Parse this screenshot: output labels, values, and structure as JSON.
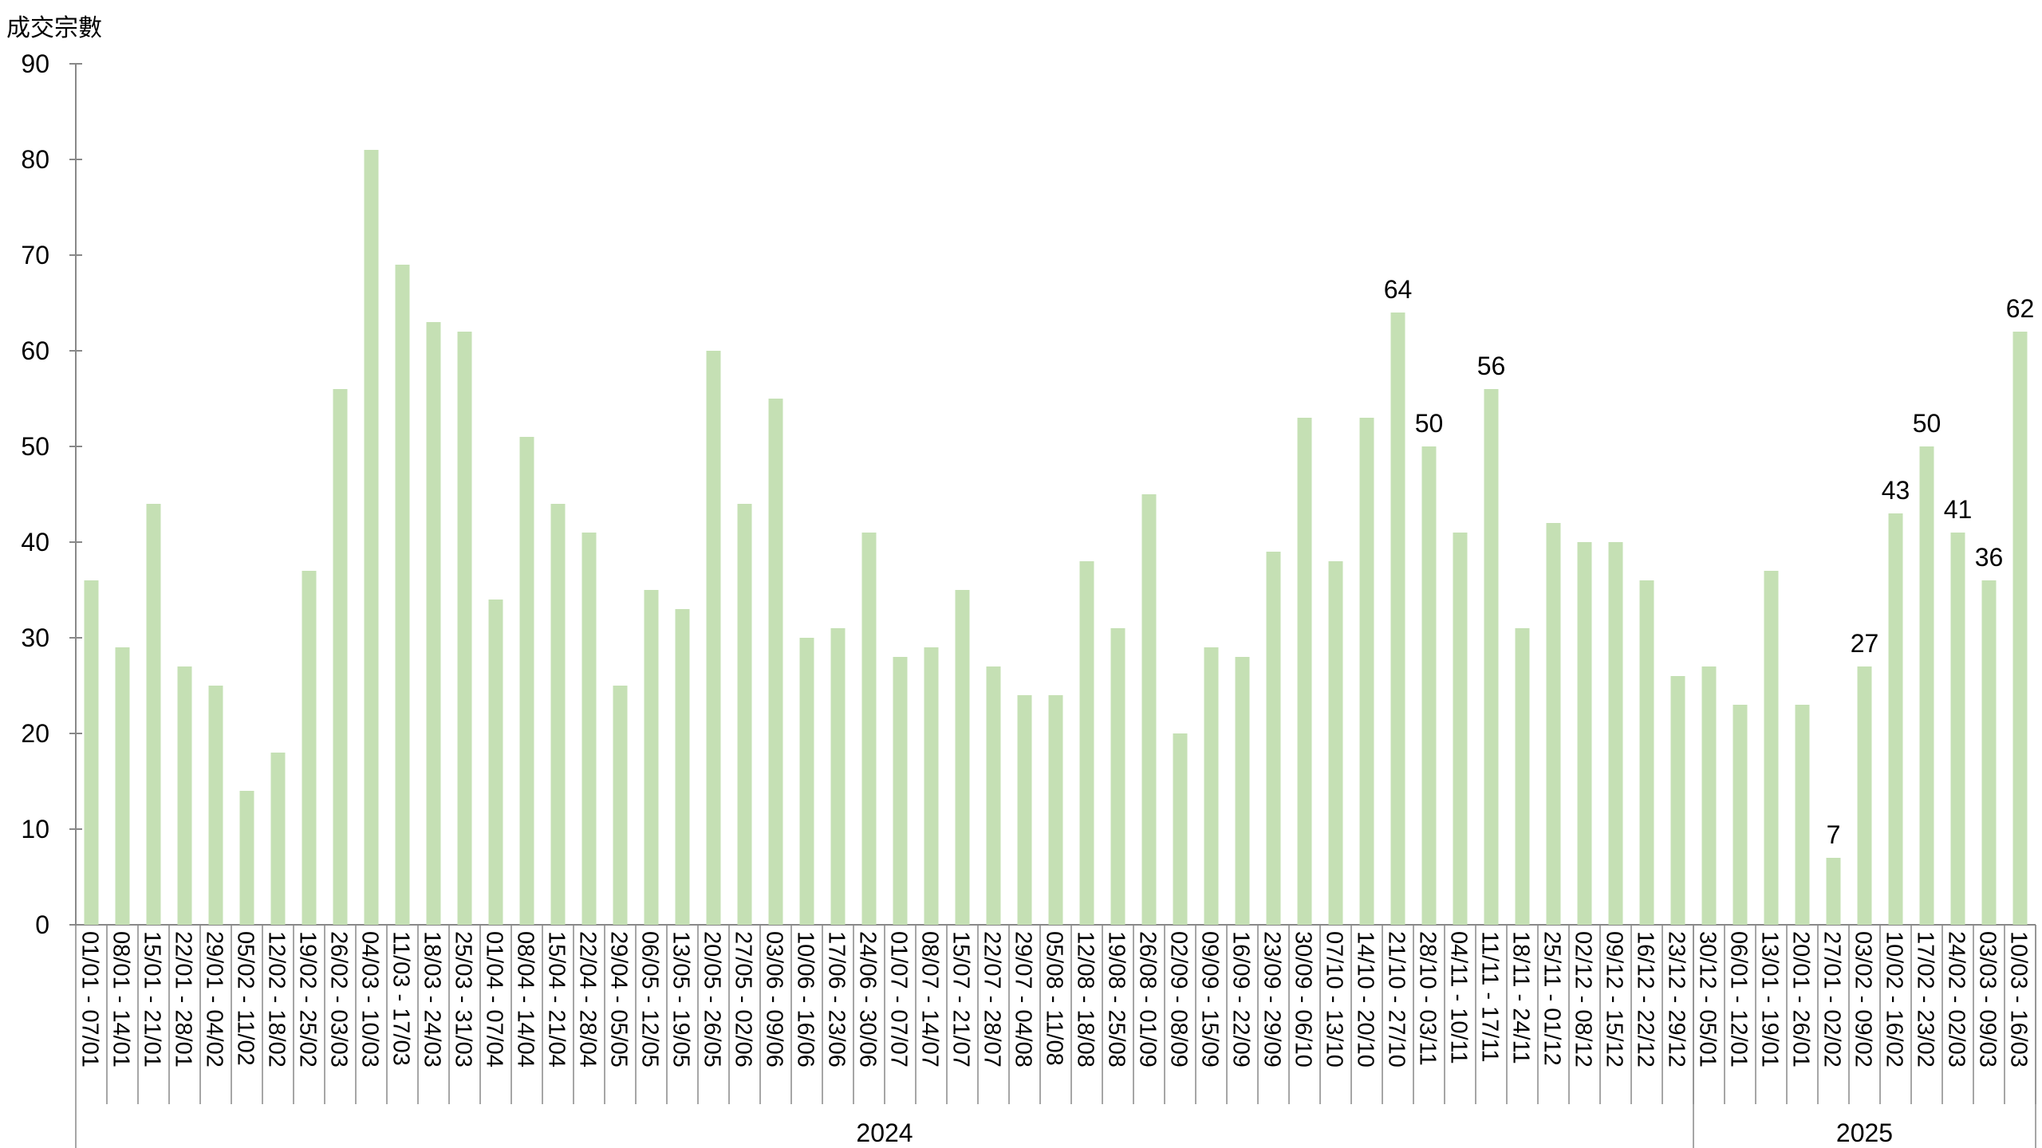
{
  "chart_data": {
    "type": "bar",
    "ylabel": "成交宗數",
    "ylim": [
      0,
      90
    ],
    "yticks": [
      0,
      10,
      20,
      30,
      40,
      50,
      60,
      70,
      80,
      90
    ],
    "grid": false,
    "bar_color": "#c5e0b4",
    "categories": [
      "01/01 - 07/01",
      "08/01 - 14/01",
      "15/01 - 21/01",
      "22/01 - 28/01",
      "29/01 - 04/02",
      "05/02 - 11/02",
      "12/02 - 18/02",
      "19/02 - 25/02",
      "26/02 - 03/03",
      "04/03 - 10/03",
      "11/03 - 17/03",
      "18/03 - 24/03",
      "25/03 - 31/03",
      "01/04 - 07/04",
      "08/04 - 14/04",
      "15/04 - 21/04",
      "22/04 - 28/04",
      "29/04 - 05/05",
      "06/05 - 12/05",
      "13/05 - 19/05",
      "20/05 - 26/05",
      "27/05 - 02/06",
      "03/06 - 09/06",
      "10/06 - 16/06",
      "17/06 - 23/06",
      "24/06 - 30/06",
      "01/07 - 07/07",
      "08/07 - 14/07",
      "15/07 - 21/07",
      "22/07 - 28/07",
      "29/07 - 04/08",
      "05/08 - 11/08",
      "12/08 - 18/08",
      "19/08 - 25/08",
      "26/08 - 01/09",
      "02/09 - 08/09",
      "09/09 - 15/09",
      "16/09 - 22/09",
      "23/09 - 29/09",
      "30/09 - 06/10",
      "07/10 - 13/10",
      "14/10 - 20/10",
      "21/10 - 27/10",
      "28/10 - 03/11",
      "04/11 - 10/11",
      "11/11 - 17/11",
      "18/11 - 24/11",
      "25/11 - 01/12",
      "02/12 - 08/12",
      "09/12 - 15/12",
      "16/12 - 22/12",
      "23/12 - 29/12",
      "30/12 - 05/01",
      "06/01 - 12/01",
      "13/01 - 19/01",
      "20/01 - 26/01",
      "27/01 - 02/02",
      "03/02 - 09/02",
      "10/02 - 16/02",
      "17/02 - 23/02",
      "24/02 - 02/03",
      "03/03 - 09/03",
      "10/03 - 16/03"
    ],
    "values": [
      36,
      29,
      44,
      27,
      25,
      14,
      18,
      37,
      56,
      81,
      69,
      63,
      62,
      34,
      51,
      44,
      41,
      25,
      35,
      33,
      60,
      44,
      55,
      30,
      31,
      41,
      28,
      29,
      35,
      27,
      24,
      24,
      38,
      31,
      45,
      20,
      29,
      28,
      39,
      53,
      38,
      53,
      64,
      50,
      41,
      56,
      31,
      42,
      40,
      40,
      36,
      26,
      27,
      23,
      37,
      23,
      7,
      27,
      43,
      50,
      41,
      36,
      62
    ],
    "data_labels": [
      {
        "index": 42,
        "text": "64"
      },
      {
        "index": 43,
        "text": "50"
      },
      {
        "index": 45,
        "text": "56"
      },
      {
        "index": 56,
        "text": "7"
      },
      {
        "index": 57,
        "text": "27"
      },
      {
        "index": 58,
        "text": "43"
      },
      {
        "index": 59,
        "text": "50"
      },
      {
        "index": 60,
        "text": "41"
      },
      {
        "index": 61,
        "text": "36"
      },
      {
        "index": 62,
        "text": "62"
      }
    ],
    "groups": [
      {
        "label": "2024",
        "start": 0,
        "count": 52
      },
      {
        "label": "2025",
        "start": 52,
        "count": 11
      }
    ]
  }
}
